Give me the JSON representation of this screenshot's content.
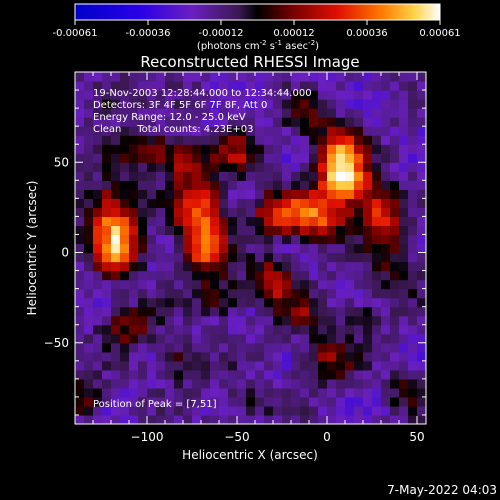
{
  "chart_data": {
    "type": "heatmap",
    "title": "Reconstructed RHESSI Image",
    "xlabel": "Heliocentric X (arcsec)",
    "ylabel": "Heliocentric Y (arcsec)",
    "xlim": [
      -140,
      55
    ],
    "ylim": [
      -95,
      100
    ],
    "x_ticks": [
      -100,
      -50,
      0,
      50
    ],
    "y_ticks": [
      -50,
      0,
      50
    ],
    "x_tick_labels": [
      "−100",
      "−50",
      "0",
      "50"
    ],
    "y_tick_labels": [
      "−50",
      "0",
      "50"
    ],
    "colorbar": {
      "range": [
        -0.00061,
        0.00061
      ],
      "tick_labels": [
        "-0.00061",
        "-0.00036",
        "-0.00012",
        "0.00012",
        "0.00036",
        "0.00061"
      ],
      "unit_label": "(photons cm",
      "unit_exp1": "-2",
      "unit_mid": " s",
      "unit_exp2": "-1",
      "unit_mid2": " asec",
      "unit_exp3": "-2",
      "unit_end": ")"
    },
    "annotations": [
      "19-Nov-2003 12:28:44.000 to 12:34:44.000",
      "Detectors: 3F 4F 5F 6F 7F 8F, Att 0",
      "Energy Range: 12.0 - 25.0 keV",
      "Clean     Total counts: 4.23E+03"
    ],
    "peak_label": "Position of Peak = [7,51]",
    "sources": [
      {
        "x": 7,
        "y": 51,
        "amp": 0.00061,
        "sx": 9,
        "sy": 12
      },
      {
        "x": 12,
        "y": 38,
        "amp": 0.0004,
        "sx": 10,
        "sy": 9
      },
      {
        "x": 30,
        "y": 20,
        "amp": 0.00045,
        "sx": 8,
        "sy": 12
      },
      {
        "x": -5,
        "y": 20,
        "amp": 0.0005,
        "sx": 12,
        "sy": 9
      },
      {
        "x": -28,
        "y": 22,
        "amp": 0.00042,
        "sx": 10,
        "sy": 8
      },
      {
        "x": -120,
        "y": 20,
        "amp": 0.00052,
        "sx": 10,
        "sy": 14
      },
      {
        "x": -115,
        "y": 0,
        "amp": 0.00048,
        "sx": 8,
        "sy": 10
      },
      {
        "x": -70,
        "y": 22,
        "amp": 0.00055,
        "sx": 10,
        "sy": 12
      },
      {
        "x": -68,
        "y": 0,
        "amp": 0.00045,
        "sx": 9,
        "sy": 9
      },
      {
        "x": -80,
        "y": 50,
        "amp": 0.00035,
        "sx": 9,
        "sy": 8
      },
      {
        "x": -100,
        "y": 58,
        "amp": 0.0003,
        "sx": 10,
        "sy": 7
      },
      {
        "x": -50,
        "y": 55,
        "amp": 0.0003,
        "sx": 9,
        "sy": 8
      },
      {
        "x": -30,
        "y": -15,
        "amp": 0.00042,
        "sx": 8,
        "sy": 9
      },
      {
        "x": -110,
        "y": -40,
        "amp": 0.0003,
        "sx": 10,
        "sy": 8
      },
      {
        "x": -60,
        "y": -25,
        "amp": 0.0003,
        "sx": 9,
        "sy": 7
      },
      {
        "x": -15,
        "y": -35,
        "amp": 0.00025,
        "sx": 9,
        "sy": 8
      },
      {
        "x": 0,
        "y": -60,
        "amp": 0.0003,
        "sx": 10,
        "sy": 9
      },
      {
        "x": -80,
        "y": -60,
        "amp": 0.00025,
        "sx": 9,
        "sy": 8
      },
      {
        "x": -135,
        "y": -80,
        "amp": 0.00028,
        "sx": 8,
        "sy": 8
      },
      {
        "x": 45,
        "y": -75,
        "amp": 0.00022,
        "sx": 8,
        "sy": 8
      },
      {
        "x": 40,
        "y": -10,
        "amp": 0.00025,
        "sx": 8,
        "sy": 10
      },
      {
        "x": -10,
        "y": 75,
        "amp": 0.00022,
        "sx": 10,
        "sy": 8
      },
      {
        "x": -120,
        "y": 85,
        "amp": 0.00022,
        "sx": 9,
        "sy": 8
      },
      {
        "x": -45,
        "y": -82,
        "amp": 0.0002,
        "sx": 10,
        "sy": 7
      },
      {
        "x": 20,
        "y": -35,
        "amp": 0.0002,
        "sx": 8,
        "sy": 8
      }
    ],
    "background_level": -0.00018
  },
  "footer": {
    "timestamp": "7-May-2022 04:03"
  }
}
